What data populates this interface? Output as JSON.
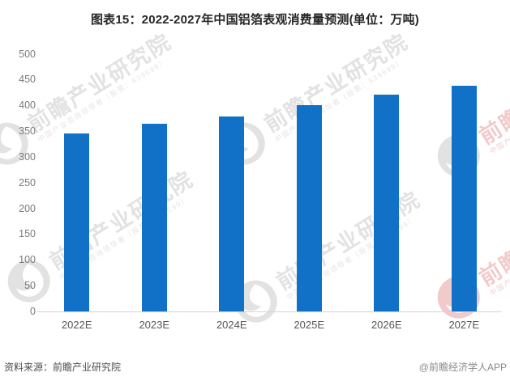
{
  "title": "图表15：2022-2027年中国铝箔表观消费量预测(单位：万吨)",
  "footer": {
    "source": "资料来源：前瞻产业研究院",
    "credit": "@前瞻经济学人APP"
  },
  "watermark": {
    "brand": "前瞻产业研究院",
    "tagline": "中国产业咨询领导者（股票：839599）"
  },
  "colors": {
    "bar": "#1171c6",
    "axis_line": "#d4d4d4",
    "watermark_gray": "#e2e2e2",
    "watermark_pink": "#f1cbcb"
  },
  "chart_data": {
    "type": "bar",
    "title": "图表15：2022-2027年中国铝箔表观消费量预测(单位：万吨)",
    "unit": "万吨",
    "categories": [
      "2022E",
      "2023E",
      "2024E",
      "2025E",
      "2026E",
      "2027E"
    ],
    "values": [
      345,
      364,
      379,
      401,
      420,
      438
    ],
    "xlabel": "",
    "ylabel": "",
    "ylim": [
      0,
      500
    ],
    "yticks": [
      0,
      50,
      100,
      150,
      200,
      250,
      300,
      350,
      400,
      450,
      500
    ],
    "grid": false,
    "legend": false,
    "bar_color": "#1171c6"
  }
}
